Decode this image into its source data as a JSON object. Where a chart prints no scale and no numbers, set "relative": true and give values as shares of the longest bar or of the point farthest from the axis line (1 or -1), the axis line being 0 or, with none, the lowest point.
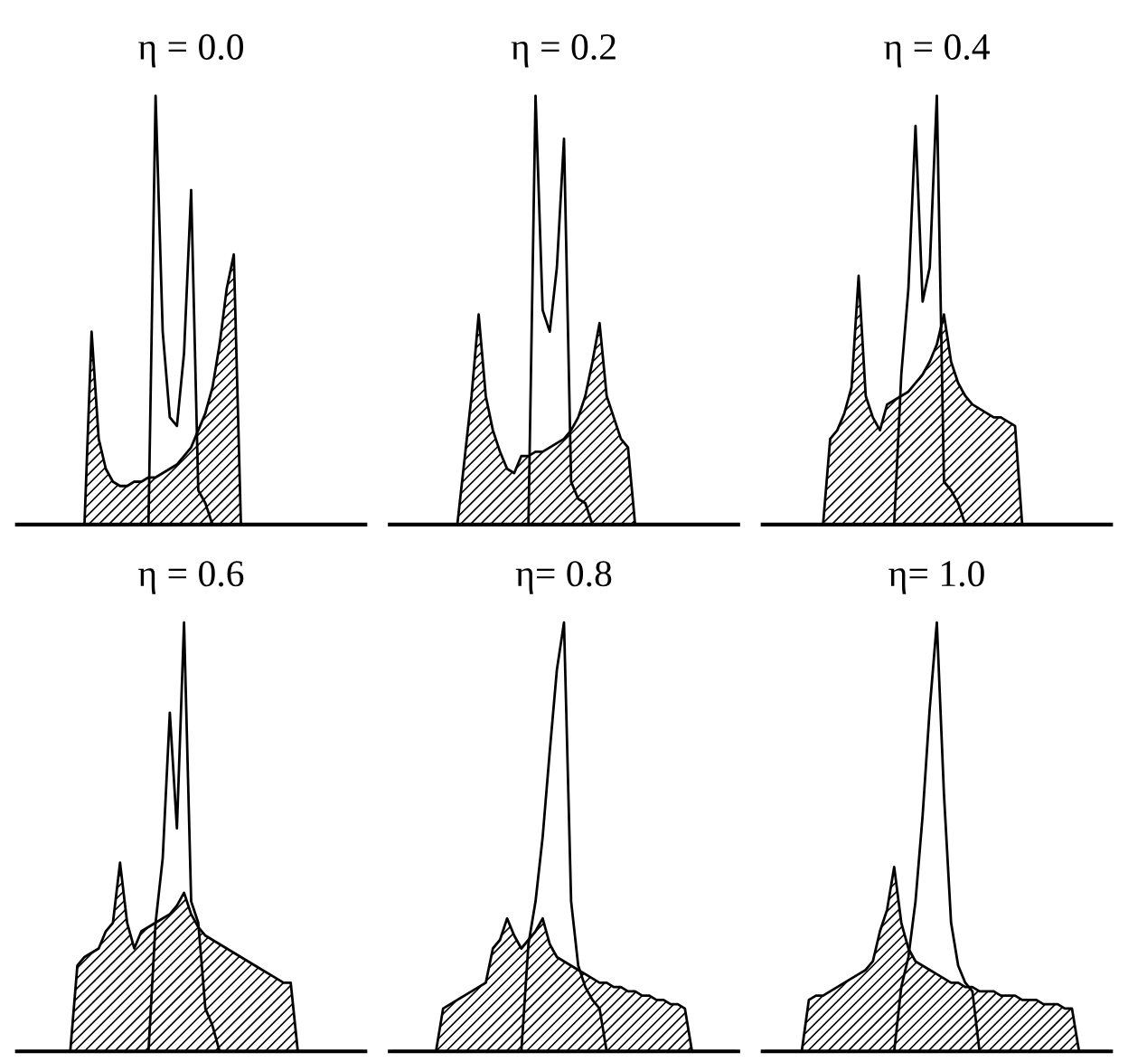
{
  "chart_data": [
    {
      "type": "line",
      "title": "η = 0.0",
      "relative": true,
      "categories": [
        null,
        null,
        null,
        null,
        null,
        null,
        null,
        null,
        null,
        null,
        null,
        null,
        null,
        null,
        null,
        null,
        null,
        null,
        null,
        null,
        null,
        null,
        null,
        null,
        null,
        null,
        null,
        null,
        null,
        null,
        null,
        null,
        null,
        null,
        null,
        null,
        null,
        null,
        null,
        null,
        null,
        null,
        null,
        null,
        null,
        null,
        null,
        null,
        null
      ],
      "series": [
        {
          "type": "area",
          "color": "#000000",
          "values": [
            0,
            0,
            0,
            0,
            0,
            0,
            0,
            0,
            0,
            0,
            0.45,
            0.2,
            0.13,
            0.1,
            0.09,
            0.09,
            0.1,
            0.1,
            0.11,
            0.11,
            0.12,
            0.13,
            0.14,
            0.16,
            0.18,
            0.22,
            0.26,
            0.32,
            0.42,
            0.55,
            0.63,
            0,
            0,
            0,
            0,
            0,
            0,
            0,
            0,
            0,
            0,
            0,
            0,
            0,
            0,
            0,
            0,
            0,
            0
          ]
        },
        {
          "color": "#000000",
          "values": [
            null,
            null,
            null,
            null,
            null,
            null,
            null,
            null,
            null,
            null,
            null,
            null,
            null,
            null,
            null,
            null,
            null,
            null,
            0,
            1.0,
            0.45,
            0.25,
            0.23,
            0.4,
            0.78,
            0.08,
            0.05,
            0,
            null,
            null,
            null,
            null,
            null,
            null,
            null,
            null,
            null,
            null,
            null,
            null,
            null,
            null,
            null,
            null,
            null,
            null,
            null,
            null,
            null
          ]
        }
      ]
    },
    {
      "type": "line",
      "title": "η = 0.2",
      "relative": true,
      "categories": [
        null,
        null,
        null,
        null,
        null,
        null,
        null,
        null,
        null,
        null,
        null,
        null,
        null,
        null,
        null,
        null,
        null,
        null,
        null,
        null,
        null,
        null,
        null,
        null,
        null,
        null,
        null,
        null,
        null,
        null,
        null,
        null,
        null,
        null,
        null,
        null,
        null,
        null,
        null,
        null,
        null,
        null,
        null,
        null,
        null,
        null,
        null,
        null,
        null
      ],
      "series": [
        {
          "type": "area",
          "color": "#000000",
          "values": [
            0,
            0,
            0,
            0,
            0,
            0,
            0,
            0,
            0,
            0,
            0.15,
            0.3,
            0.49,
            0.3,
            0.22,
            0.17,
            0.13,
            0.12,
            0.16,
            0.16,
            0.17,
            0.17,
            0.18,
            0.19,
            0.2,
            0.22,
            0.25,
            0.3,
            0.38,
            0.47,
            0.3,
            0.25,
            0.2,
            0.18,
            0,
            0,
            0,
            0,
            0,
            0,
            0,
            0,
            0,
            0,
            0,
            0,
            0,
            0,
            0
          ]
        },
        {
          "color": "#000000",
          "values": [
            null,
            null,
            null,
            null,
            null,
            null,
            null,
            null,
            null,
            null,
            null,
            null,
            null,
            null,
            null,
            null,
            null,
            null,
            null,
            0,
            1.0,
            0.5,
            0.45,
            0.6,
            0.9,
            0.1,
            0.06,
            0.05,
            0,
            null,
            null,
            null,
            null,
            null,
            null,
            null,
            null,
            null,
            null,
            null,
            null,
            null,
            null,
            null,
            null,
            null,
            null,
            null,
            null
          ]
        }
      ]
    },
    {
      "type": "line",
      "title": "η = 0.4",
      "relative": true,
      "categories": [
        null,
        null,
        null,
        null,
        null,
        null,
        null,
        null,
        null,
        null,
        null,
        null,
        null,
        null,
        null,
        null,
        null,
        null,
        null,
        null,
        null,
        null,
        null,
        null,
        null,
        null,
        null,
        null,
        null,
        null,
        null,
        null,
        null,
        null,
        null,
        null,
        null,
        null,
        null,
        null,
        null,
        null,
        null,
        null,
        null,
        null,
        null,
        null,
        null
      ],
      "series": [
        {
          "type": "area",
          "color": "#000000",
          "values": [
            0,
            0,
            0,
            0,
            0,
            0,
            0,
            0,
            0,
            0.2,
            0.22,
            0.26,
            0.32,
            0.58,
            0.3,
            0.25,
            0.22,
            0.28,
            0.29,
            0.3,
            0.31,
            0.33,
            0.35,
            0.38,
            0.42,
            0.49,
            0.38,
            0.33,
            0.3,
            0.28,
            0.27,
            0.26,
            0.25,
            0.25,
            0.24,
            0.23,
            0,
            0,
            0,
            0,
            0,
            0,
            0,
            0,
            0,
            0,
            0,
            0,
            0
          ]
        },
        {
          "color": "#000000",
          "values": [
            null,
            null,
            null,
            null,
            null,
            null,
            null,
            null,
            null,
            null,
            null,
            null,
            null,
            null,
            null,
            null,
            null,
            null,
            0,
            0.35,
            0.55,
            0.93,
            0.52,
            0.6,
            1.0,
            0.1,
            0.08,
            0.05,
            0,
            null,
            null,
            null,
            null,
            null,
            null,
            null,
            null,
            null,
            null,
            null,
            null,
            null,
            null,
            null,
            null,
            null,
            null,
            null,
            null
          ]
        }
      ]
    },
    {
      "type": "line",
      "title": "η = 0.6",
      "relative": true,
      "categories": [
        null,
        null,
        null,
        null,
        null,
        null,
        null,
        null,
        null,
        null,
        null,
        null,
        null,
        null,
        null,
        null,
        null,
        null,
        null,
        null,
        null,
        null,
        null,
        null,
        null,
        null,
        null,
        null,
        null,
        null,
        null,
        null,
        null,
        null,
        null,
        null,
        null,
        null,
        null,
        null,
        null,
        null,
        null,
        null,
        null,
        null,
        null,
        null,
        null
      ],
      "series": [
        {
          "type": "area",
          "color": "#000000",
          "values": [
            0,
            0,
            0,
            0,
            0,
            0,
            0,
            0,
            0.2,
            0.22,
            0.23,
            0.24,
            0.28,
            0.3,
            0.44,
            0.3,
            0.24,
            0.28,
            0.29,
            0.3,
            0.31,
            0.32,
            0.34,
            0.37,
            0.32,
            0.29,
            0.27,
            0.26,
            0.25,
            0.24,
            0.23,
            0.22,
            0.21,
            0.2,
            0.19,
            0.18,
            0.17,
            0.16,
            0.16,
            0,
            0,
            0,
            0,
            0,
            0,
            0,
            0,
            0,
            0
          ]
        },
        {
          "color": "#000000",
          "values": [
            null,
            null,
            null,
            null,
            null,
            null,
            null,
            null,
            null,
            null,
            null,
            null,
            null,
            null,
            null,
            null,
            null,
            null,
            0,
            0.3,
            0.45,
            0.79,
            0.52,
            1.0,
            0.35,
            0.3,
            0.1,
            0.06,
            0,
            null,
            null,
            null,
            null,
            null,
            null,
            null,
            null,
            null,
            null,
            null,
            null,
            null,
            null,
            null,
            null,
            null,
            null,
            null,
            null
          ]
        }
      ]
    },
    {
      "type": "line",
      "title": "η= 0.8",
      "relative": true,
      "categories": [
        null,
        null,
        null,
        null,
        null,
        null,
        null,
        null,
        null,
        null,
        null,
        null,
        null,
        null,
        null,
        null,
        null,
        null,
        null,
        null,
        null,
        null,
        null,
        null,
        null,
        null,
        null,
        null,
        null,
        null,
        null,
        null,
        null,
        null,
        null,
        null,
        null,
        null,
        null,
        null,
        null,
        null,
        null,
        null,
        null,
        null,
        null,
        null,
        null
      ],
      "series": [
        {
          "type": "area",
          "color": "#000000",
          "values": [
            0,
            0,
            0,
            0,
            0,
            0,
            0,
            0.1,
            0.11,
            0.12,
            0.13,
            0.14,
            0.15,
            0.16,
            0.24,
            0.26,
            0.31,
            0.27,
            0.24,
            0.26,
            0.28,
            0.31,
            0.25,
            0.22,
            0.21,
            0.2,
            0.19,
            0.18,
            0.17,
            0.16,
            0.16,
            0.15,
            0.15,
            0.14,
            0.14,
            0.13,
            0.13,
            0.12,
            0.12,
            0.11,
            0.11,
            0.1,
            0,
            0,
            0,
            0,
            0,
            0,
            0
          ]
        },
        {
          "color": "#000000",
          "values": [
            null,
            null,
            null,
            null,
            null,
            null,
            null,
            null,
            null,
            null,
            null,
            null,
            null,
            null,
            null,
            null,
            null,
            null,
            0,
            0.25,
            0.35,
            0.5,
            0.7,
            0.89,
            1.0,
            0.35,
            0.2,
            0.15,
            0.12,
            0.1,
            0,
            null,
            null,
            null,
            null,
            null,
            null,
            null,
            null,
            null,
            null,
            null,
            null,
            null,
            null,
            null,
            null,
            null,
            null
          ]
        }
      ]
    },
    {
      "type": "line",
      "title": "η= 1.0",
      "relative": true,
      "categories": [
        null,
        null,
        null,
        null,
        null,
        null,
        null,
        null,
        null,
        null,
        null,
        null,
        null,
        null,
        null,
        null,
        null,
        null,
        null,
        null,
        null,
        null,
        null,
        null,
        null,
        null,
        null,
        null,
        null,
        null,
        null,
        null,
        null,
        null,
        null,
        null,
        null,
        null,
        null,
        null,
        null,
        null,
        null,
        null,
        null,
        null,
        null,
        null,
        null
      ],
      "series": [
        {
          "type": "area",
          "color": "#000000",
          "values": [
            0,
            0,
            0,
            0,
            0,
            0,
            0.12,
            0.13,
            0.13,
            0.14,
            0.15,
            0.16,
            0.17,
            0.18,
            0.19,
            0.21,
            0.28,
            0.33,
            0.43,
            0.3,
            0.24,
            0.21,
            0.2,
            0.19,
            0.18,
            0.17,
            0.16,
            0.16,
            0.15,
            0.15,
            0.14,
            0.14,
            0.14,
            0.13,
            0.13,
            0.13,
            0.12,
            0.12,
            0.12,
            0.11,
            0.11,
            0.11,
            0.1,
            0.1,
            0,
            0,
            0,
            0,
            0
          ]
        },
        {
          "color": "#000000",
          "values": [
            null,
            null,
            null,
            null,
            null,
            null,
            null,
            null,
            null,
            null,
            null,
            null,
            null,
            null,
            null,
            null,
            null,
            null,
            0,
            0.15,
            0.22,
            0.35,
            0.55,
            0.8,
            1.0,
            0.6,
            0.3,
            0.2,
            0.16,
            0.14,
            0,
            null,
            null,
            null,
            null,
            null,
            null,
            null,
            null,
            null,
            null,
            null,
            null,
            null,
            null,
            null,
            null,
            null,
            null
          ]
        }
      ]
    }
  ]
}
